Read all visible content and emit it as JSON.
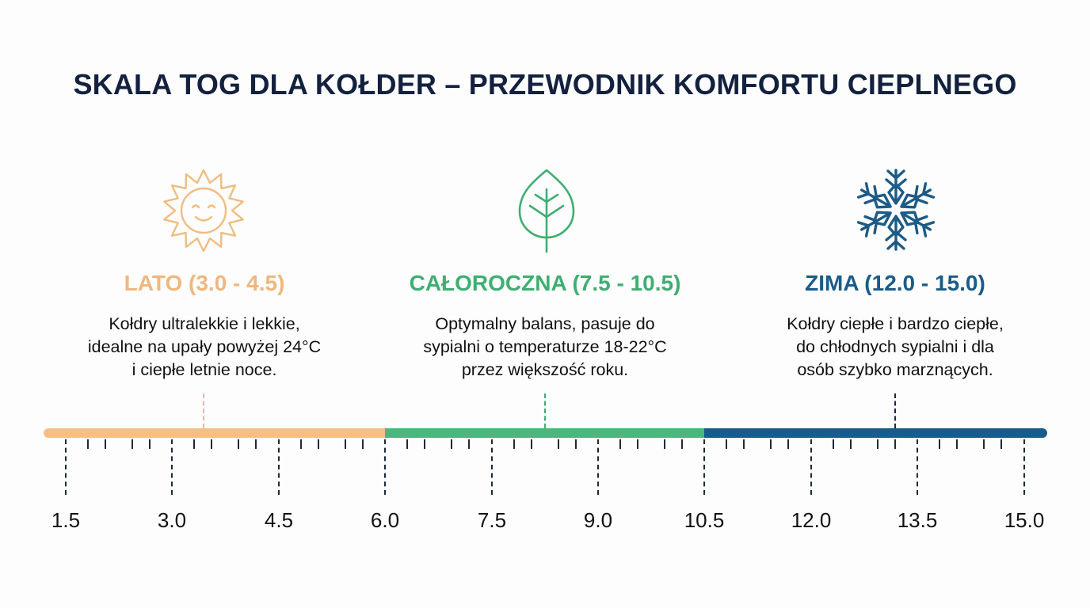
{
  "title": "SKALA TOG DLA KOŁDER – PRZEWODNIK KOMFORTU CIEPLNEGO",
  "colors": {
    "title": "#13213f",
    "summer": "#f5bd82",
    "summer_text": "#efb77e",
    "allseason": "#4cb67c",
    "allseason_text": "#3fae72",
    "winter": "#175c8a",
    "winter_text": "#1c5b87",
    "ticks": "#1d2a3a"
  },
  "categories": [
    {
      "id": "summer",
      "icon": "sun-icon",
      "heading": "LATO (3.0 - 4.5)",
      "description": "Kołdry ultralekkie i lekkie,\nidealne na upały powyżej 24°C\ni ciepłe letnie noce."
    },
    {
      "id": "allseason",
      "icon": "leaf-icon",
      "heading": "CAŁOROCZNA (7.5 - 10.5)",
      "description": "Optymalny balans, pasuje do\nsypialni o temperaturze 18-22°C\nprzez większość roku."
    },
    {
      "id": "winter",
      "icon": "snowflake-icon",
      "heading": "ZIMA (12.0 - 15.0)",
      "description": "Kołdry ciepłe i bardzo ciepłe,\ndo chłodnych sypialni i  dla\nosób szybko marznących."
    }
  ],
  "scale": {
    "labels": [
      "1.5",
      "3.0",
      "4.5",
      "6.0",
      "7.5",
      "9.0",
      "10.5",
      "12.0",
      "13.5",
      "15.0"
    ],
    "segments": [
      {
        "name": "summer",
        "from": 1.5,
        "to": 6.0
      },
      {
        "name": "allseason",
        "from": 6.0,
        "to": 10.5
      },
      {
        "name": "winter",
        "from": 10.5,
        "to": 15.0
      }
    ]
  }
}
